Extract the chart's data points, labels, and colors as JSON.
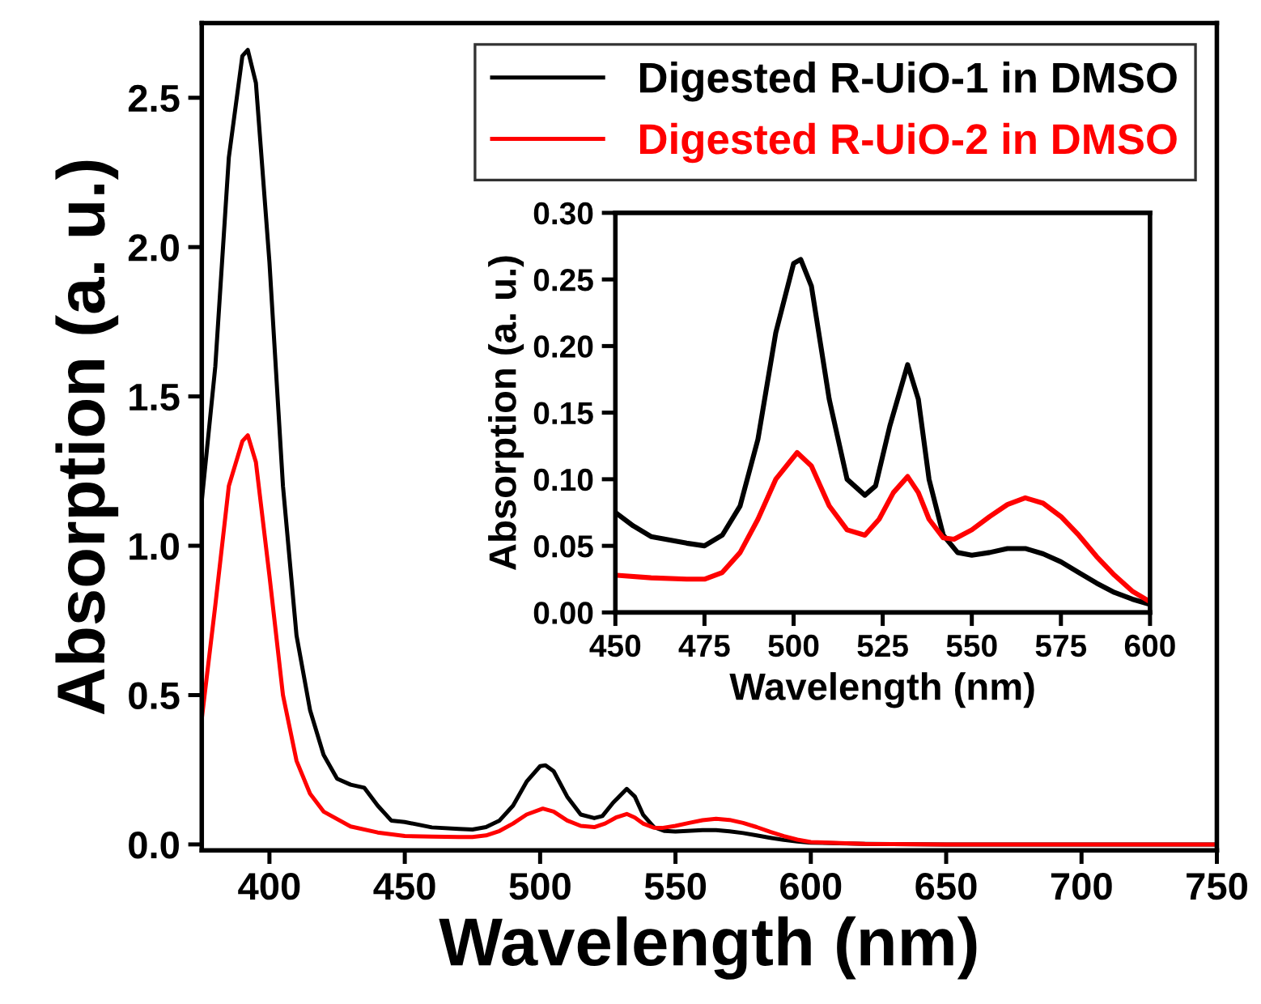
{
  "chart_data": [
    {
      "type": "line",
      "xlabel": "Wavelength (nm)",
      "ylabel": "Absorption (a. u.)",
      "xlim": [
        375,
        750
      ],
      "xticks": [
        400,
        450,
        500,
        550,
        600,
        650,
        700,
        750
      ],
      "ylim": [
        -0.02,
        2.75
      ],
      "yticks": [
        {
          "value": 0,
          "label": "0.0"
        },
        0.5,
        {
          "value": 1,
          "label": "1.0"
        },
        1.5,
        {
          "value": 2,
          "label": "2.0"
        },
        2.5
      ],
      "legend": "top right",
      "grid": false,
      "series": [
        {
          "name": "Digested R-UiO-1 in DMSO",
          "color": "#000000",
          "x": [
            375,
            380,
            385,
            390,
            392,
            395,
            400,
            405,
            410,
            415,
            420,
            425,
            430,
            435,
            440,
            445,
            450,
            460,
            470,
            475,
            480,
            485,
            490,
            495,
            500,
            502,
            505,
            510,
            515,
            520,
            523,
            527,
            532,
            535,
            538,
            542,
            546,
            550,
            560,
            565,
            570,
            575,
            580,
            585,
            590,
            595,
            600,
            620,
            650,
            700,
            750
          ],
          "values": [
            1.15,
            1.6,
            2.3,
            2.64,
            2.66,
            2.55,
            1.95,
            1.2,
            0.7,
            0.45,
            0.3,
            0.22,
            0.2,
            0.19,
            0.13,
            0.08,
            0.075,
            0.057,
            0.052,
            0.05,
            0.058,
            0.08,
            0.13,
            0.21,
            0.262,
            0.265,
            0.245,
            0.16,
            0.1,
            0.088,
            0.095,
            0.14,
            0.186,
            0.16,
            0.1,
            0.058,
            0.045,
            0.043,
            0.048,
            0.048,
            0.044,
            0.038,
            0.03,
            0.022,
            0.015,
            0.01,
            0.006,
            0.002,
            0,
            0,
            0
          ]
        },
        {
          "name": "Digested R-UiO-2 in DMSO",
          "color": "#ff0000",
          "x": [
            375,
            380,
            385,
            390,
            392,
            395,
            400,
            405,
            410,
            415,
            420,
            430,
            440,
            450,
            460,
            470,
            475,
            480,
            485,
            490,
            495,
            501,
            505,
            510,
            515,
            520,
            524,
            528,
            532,
            535,
            538,
            542,
            545,
            550,
            555,
            560,
            565,
            570,
            575,
            580,
            585,
            590,
            595,
            600,
            620,
            650,
            700,
            750
          ],
          "values": [
            0.42,
            0.8,
            1.2,
            1.35,
            1.37,
            1.28,
            0.9,
            0.5,
            0.28,
            0.17,
            0.11,
            0.06,
            0.04,
            0.028,
            0.026,
            0.025,
            0.025,
            0.03,
            0.045,
            0.07,
            0.1,
            0.12,
            0.11,
            0.08,
            0.062,
            0.058,
            0.07,
            0.09,
            0.102,
            0.09,
            0.07,
            0.056,
            0.055,
            0.062,
            0.072,
            0.081,
            0.086,
            0.082,
            0.072,
            0.058,
            0.042,
            0.028,
            0.016,
            0.008,
            0.002,
            0,
            0,
            0
          ]
        }
      ]
    },
    {
      "type": "line",
      "xlabel": "Wavelength (nm)",
      "ylabel": "Absorption (a. u.)",
      "xlim": [
        450,
        600
      ],
      "xticks": [
        450,
        475,
        500,
        525,
        550,
        575,
        600
      ],
      "ylim": [
        0,
        0.3
      ],
      "yticks": [
        {
          "value": 0,
          "label": "0.00"
        },
        {
          "value": 0.05,
          "label": "0.05"
        },
        {
          "value": 0.1,
          "label": "0.10"
        },
        {
          "value": 0.15,
          "label": "0.15"
        },
        {
          "value": 0.2,
          "label": "0.20"
        },
        {
          "value": 0.25,
          "label": "0.25"
        },
        {
          "value": 0.3,
          "label": "0.30"
        }
      ],
      "grid": false,
      "series": [
        {
          "color": "#000000",
          "x": [
            450,
            455,
            460,
            470,
            475,
            480,
            485,
            490,
            495,
            500,
            502,
            505,
            510,
            515,
            520,
            523,
            527,
            532,
            535,
            538,
            542,
            546,
            550,
            555,
            560,
            565,
            570,
            575,
            580,
            585,
            590,
            595,
            600
          ],
          "values": [
            0.075,
            0.065,
            0.057,
            0.052,
            0.05,
            0.058,
            0.08,
            0.13,
            0.21,
            0.262,
            0.265,
            0.245,
            0.16,
            0.1,
            0.088,
            0.095,
            0.14,
            0.186,
            0.16,
            0.1,
            0.058,
            0.045,
            0.043,
            0.045,
            0.048,
            0.048,
            0.044,
            0.038,
            0.03,
            0.022,
            0.015,
            0.01,
            0.006
          ]
        },
        {
          "color": "#ff0000",
          "x": [
            450,
            460,
            470,
            475,
            480,
            485,
            490,
            495,
            501,
            505,
            510,
            515,
            520,
            524,
            528,
            532,
            535,
            538,
            542,
            545,
            550,
            555,
            560,
            565,
            570,
            575,
            580,
            585,
            590,
            595,
            600
          ],
          "values": [
            0.028,
            0.026,
            0.025,
            0.025,
            0.03,
            0.045,
            0.07,
            0.1,
            0.12,
            0.11,
            0.08,
            0.062,
            0.058,
            0.07,
            0.09,
            0.102,
            0.09,
            0.07,
            0.056,
            0.055,
            0.062,
            0.072,
            0.081,
            0.086,
            0.082,
            0.072,
            0.058,
            0.042,
            0.028,
            0.016,
            0.008
          ]
        }
      ]
    }
  ]
}
